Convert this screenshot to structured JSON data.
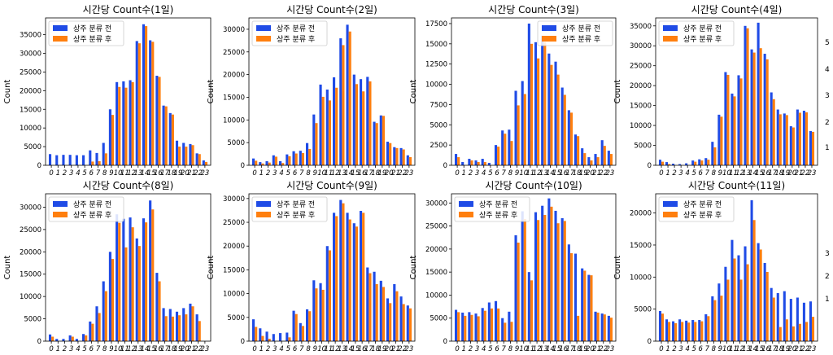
{
  "colors": {
    "before": "#1f4be6",
    "after": "#ff7f0e",
    "axis": "#000000"
  },
  "chart_data": [
    {
      "type": "bar",
      "title": "시간당 Count수(1일)",
      "ylabel": "Count",
      "categories": [
        "0",
        "1",
        "2",
        "3",
        "4",
        "5",
        "6",
        "7",
        "8",
        "9",
        "10",
        "11",
        "12",
        "13",
        "14",
        "15",
        "16",
        "17",
        "18",
        "19",
        "20",
        "21",
        "22",
        "23"
      ],
      "ylim": [
        0,
        39500
      ],
      "yticks": [
        0,
        5000,
        10000,
        15000,
        20000,
        25000,
        30000,
        35000
      ],
      "legend": "top-left",
      "series": [
        {
          "name": "상주 분류 전",
          "values": [
            3000,
            2700,
            2800,
            2800,
            2700,
            2700,
            4000,
            3300,
            6000,
            15000,
            22300,
            22500,
            22800,
            33300,
            37800,
            33500,
            24000,
            16000,
            14000,
            6600,
            6000,
            5700,
            3200,
            1300
          ]
        },
        {
          "name": "상주 분류 후",
          "values": [
            0,
            0,
            0,
            0,
            0,
            0,
            1000,
            1100,
            3200,
            13500,
            21000,
            20800,
            22300,
            32700,
            37300,
            33100,
            23700,
            15800,
            13600,
            5000,
            5000,
            5400,
            3000,
            900
          ]
        }
      ]
    },
    {
      "type": "bar",
      "title": "시간당 Count수(2일)",
      "ylabel": "Count",
      "categories": [
        "0",
        "1",
        "2",
        "3",
        "4",
        "5",
        "6",
        "7",
        "8",
        "9",
        "10",
        "11",
        "12",
        "13",
        "14",
        "15",
        "16",
        "17",
        "18",
        "19",
        "20",
        "21",
        "22",
        "23"
      ],
      "ylim": [
        0,
        32500
      ],
      "yticks": [
        0,
        5000,
        10000,
        15000,
        20000,
        25000,
        30000
      ],
      "legend": "top-left",
      "series": [
        {
          "name": "상주 분류 전",
          "values": [
            1500,
            700,
            900,
            2200,
            900,
            2400,
            3100,
            3200,
            4900,
            11200,
            17800,
            16700,
            19400,
            28000,
            31000,
            20000,
            19000,
            19500,
            9600,
            11000,
            5200,
            4000,
            3800,
            2200
          ]
        },
        {
          "name": "상주 분류 후",
          "values": [
            1000,
            400,
            600,
            1900,
            500,
            2000,
            2600,
            2700,
            3600,
            9300,
            15100,
            14300,
            17100,
            26500,
            29500,
            17900,
            16300,
            18500,
            9300,
            10900,
            4900,
            3800,
            3500,
            1800
          ]
        }
      ]
    },
    {
      "type": "bar",
      "title": "시간당 Count수(3일)",
      "ylabel": "Count",
      "categories": [
        "0",
        "1",
        "2",
        "3",
        "4",
        "5",
        "6",
        "7",
        "8",
        "9",
        "10",
        "11",
        "12",
        "13",
        "14",
        "15",
        "16",
        "17",
        "18",
        "19",
        "20",
        "21",
        "22",
        "23"
      ],
      "ylim": [
        0,
        18200
      ],
      "yticks": [
        0,
        2500,
        5000,
        7500,
        10000,
        12500,
        15000,
        17500
      ],
      "legend": "top-right",
      "series": [
        {
          "name": "상주 분류 전",
          "values": [
            1400,
            400,
            800,
            600,
            800,
            300,
            2500,
            4300,
            4400,
            9200,
            10400,
            17500,
            15200,
            16000,
            13800,
            12800,
            9600,
            6800,
            3800,
            2100,
            1000,
            1400,
            3100,
            1800
          ]
        },
        {
          "name": "상주 분류 후",
          "values": [
            1000,
            0,
            600,
            400,
            400,
            0,
            2300,
            3900,
            3000,
            7400,
            8800,
            15000,
            13200,
            15200,
            12400,
            11200,
            8700,
            6500,
            3600,
            1500,
            600,
            1000,
            2400,
            1400
          ]
        }
      ]
    },
    {
      "type": "bar",
      "title": "시간당 Count수(4일)",
      "ylabel": "Count",
      "categories": [
        "0",
        "1",
        "2",
        "3",
        "4",
        "5",
        "6",
        "7",
        "8",
        "9",
        "10",
        "11",
        "12",
        "13",
        "14",
        "15",
        "16",
        "17",
        "18",
        "19",
        "20",
        "21",
        "22",
        "23"
      ],
      "ylim": [
        0,
        37000
      ],
      "yticks": [
        0,
        5000,
        10000,
        15000,
        20000,
        25000,
        30000,
        35000
      ],
      "legend": "top-left",
      "series": [
        {
          "name": "상주 분류 전",
          "values": [
            1400,
            800,
            400,
            300,
            500,
            1200,
            1500,
            1800,
            5900,
            12700,
            23400,
            18000,
            22600,
            35000,
            29100,
            35800,
            28000,
            18300,
            14000,
            13000,
            9800,
            14000,
            13700,
            8600
          ]
        },
        {
          "name": "상주 분류 후",
          "values": [
            900,
            300,
            0,
            0,
            0,
            900,
            1200,
            1400,
            4500,
            12200,
            22700,
            17300,
            21800,
            34400,
            28300,
            29400,
            26600,
            16600,
            12800,
            12600,
            9500,
            13200,
            13300,
            8400
          ]
        }
      ]
    },
    {
      "type": "bar",
      "title": "시간당 Count수(8일)",
      "ylabel": "Count",
      "categories": [
        "0",
        "1",
        "2",
        "3",
        "4",
        "5",
        "6",
        "7",
        "8",
        "9",
        "10",
        "11",
        "12",
        "13",
        "14",
        "15",
        "16",
        "17",
        "18",
        "19",
        "20",
        "21",
        "22",
        "23"
      ],
      "ylim": [
        0,
        33000
      ],
      "yticks": [
        0,
        5000,
        10000,
        15000,
        20000,
        25000,
        30000
      ],
      "legend": "top-left",
      "series": [
        {
          "name": "상주 분류 전",
          "values": [
            1500,
            500,
            500,
            1300,
            500,
            1600,
            4400,
            7800,
            13400,
            20000,
            28400,
            27400,
            27700,
            23000,
            27500,
            31500,
            15300,
            7400,
            7200,
            6600,
            7400,
            8400,
            6000,
            0
          ]
        },
        {
          "name": "상주 분류 후",
          "values": [
            1000,
            0,
            0,
            1000,
            0,
            1300,
            3900,
            6300,
            11200,
            18400,
            26500,
            21000,
            25500,
            21300,
            26600,
            29500,
            13400,
            5600,
            5500,
            5800,
            6000,
            7800,
            4500,
            0
          ]
        }
      ]
    },
    {
      "type": "bar",
      "title": "시간당 Count수(9일)",
      "ylabel": "Count",
      "categories": [
        "0",
        "1",
        "2",
        "3",
        "4",
        "5",
        "6",
        "7",
        "8",
        "9",
        "10",
        "11",
        "12",
        "13",
        "14",
        "15",
        "16",
        "17",
        "18",
        "19",
        "20",
        "21",
        "22",
        "23"
      ],
      "ylim": [
        0,
        31000
      ],
      "yticks": [
        0,
        5000,
        10000,
        15000,
        20000,
        25000,
        30000
      ],
      "legend": "top-left",
      "series": [
        {
          "name": "상주 분류 전",
          "values": [
            4600,
            2700,
            2000,
            1500,
            1700,
            1800,
            6400,
            3800,
            6700,
            12800,
            12200,
            20000,
            27000,
            29700,
            27000,
            24800,
            27400,
            15500,
            14600,
            12700,
            9000,
            12000,
            9400,
            7500
          ]
        },
        {
          "name": "상주 분류 후",
          "values": [
            3000,
            1100,
            500,
            0,
            0,
            800,
            5700,
            3200,
            6300,
            11100,
            10800,
            19100,
            26300,
            29000,
            25600,
            24100,
            27000,
            14300,
            12000,
            11400,
            8000,
            10500,
            7800,
            6900
          ]
        }
      ]
    },
    {
      "type": "bar",
      "title": "시간당 Count수(10일)",
      "ylabel": "Count",
      "categories": [
        "0",
        "1",
        "2",
        "3",
        "4",
        "5",
        "6",
        "7",
        "8",
        "9",
        "10",
        "11",
        "12",
        "13",
        "14",
        "15",
        "16",
        "17",
        "18",
        "19",
        "20",
        "21",
        "22",
        "23"
      ],
      "ylim": [
        0,
        32000
      ],
      "yticks": [
        0,
        5000,
        10000,
        15000,
        20000,
        25000,
        30000
      ],
      "legend": "top-left",
      "series": [
        {
          "name": "상주 분류 전",
          "values": [
            6800,
            6200,
            6300,
            6000,
            7200,
            8400,
            8700,
            5000,
            6400,
            23000,
            28200,
            15000,
            28000,
            29400,
            31000,
            28300,
            26700,
            21000,
            19000,
            15800,
            14400,
            6400,
            6000,
            5500
          ]
        },
        {
          "name": "상주 분류 후",
          "values": [
            6300,
            5500,
            5700,
            5400,
            6600,
            7100,
            7100,
            4000,
            4200,
            21400,
            26500,
            13200,
            26300,
            27400,
            29200,
            25600,
            26100,
            19100,
            5500,
            15300,
            14300,
            6200,
            5800,
            5100
          ]
        }
      ]
    },
    {
      "type": "bar",
      "title": "시간당 Count수(11일)",
      "ylabel": "Count",
      "categories": [
        "0",
        "1",
        "2",
        "3",
        "4",
        "5",
        "6",
        "7",
        "8",
        "9",
        "10",
        "11",
        "12",
        "13",
        "14",
        "15",
        "16",
        "17",
        "18",
        "19",
        "20",
        "21",
        "22",
        "23"
      ],
      "ylim": [
        0,
        23000
      ],
      "yticks": [
        0,
        5000,
        10000,
        15000,
        20000
      ],
      "legend": "top-left",
      "series": [
        {
          "name": "상주 분류 전",
          "values": [
            4700,
            3400,
            3100,
            3400,
            3200,
            3300,
            3300,
            4200,
            7000,
            9000,
            11600,
            15800,
            13400,
            14800,
            22000,
            15300,
            12200,
            8300,
            7500,
            7800,
            6600,
            6800,
            6000,
            6200
          ]
        },
        {
          "name": "상주 분류 후",
          "values": [
            4300,
            3000,
            2800,
            3000,
            2900,
            3000,
            3100,
            3900,
            6400,
            7100,
            9600,
            12900,
            9600,
            12000,
            18900,
            14300,
            10800,
            6800,
            2200,
            3400,
            2300,
            2700,
            3000,
            3800
          ]
        }
      ]
    }
  ],
  "cropped_axis_ticks": {
    "top": [
      "5",
      "4",
      "3",
      "2",
      "1"
    ],
    "bottom": [
      "3",
      "2",
      "1"
    ]
  }
}
